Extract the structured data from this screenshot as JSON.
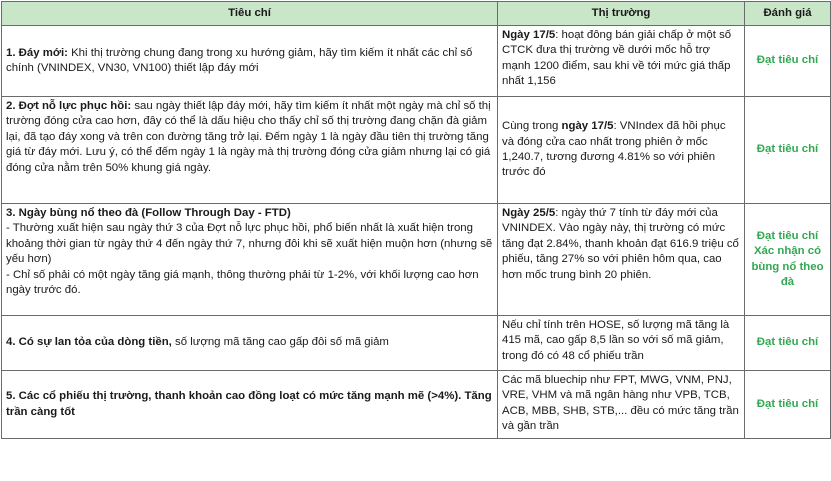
{
  "headers": [
    "Tiêu chí",
    "Thị trường",
    "Đánh giá"
  ],
  "rows": [
    {
      "criteria_title": "1. Đáy mới:",
      "criteria_text": " Khi thị trường chung đang trong xu hướng giảm, hãy tìm kiếm ít nhất các chỉ số chính (VNINDEX, VN30, VN100) thiết lập đáy mới",
      "market_lead": "Ngày 17/5",
      "market_text": ": hoạt đông bán giải chấp ở một số CTCK đưa thị trường về dưới mốc hỗ trợ mạnh 1200 điểm, sau khi về tới mức giá thấp nhất 1,156",
      "market_trail": "",
      "rating": "Đạt tiêu chí"
    },
    {
      "criteria_title": "2. Đợt nỗ lực phục hồi:",
      "criteria_text": " sau ngày thiết lập đáy mới, hãy tìm kiếm ít nhất một ngày mà chỉ số thị trường đóng cửa cao hơn, đây có thể là dấu hiệu cho thấy chỉ số thị trường đang chặn đà giảm lại, đã tạo đáy xong và trên con đường tăng trở lại. Đếm ngày 1 là ngày đầu tiên thị trường tăng giá từ đáy mới. Lưu ý, có thể đếm ngày 1 là ngày mà thị trường đóng cửa giảm nhưng lại có giá đóng cửa nằm trên 50% khung giá ngày.",
      "market_lead": "Cùng trong ",
      "market_bold": "ngày 17/5",
      "market_text": ": VNIndex đã hồi phục và đóng cửa cao nhất trong phiên ở mốc 1,240.7, tương đương 4.81% so với phiên trước đó",
      "rating": "Đạt tiêu chí"
    },
    {
      "criteria_title": "3. Ngày bùng nổ theo đà (Follow Through Day - FTD)",
      "criteria_text": "- Thường xuất hiện sau ngày thứ 3 của Đợt nỗ lực phục hồi, phổ biến nhất là xuất hiện trong khoảng thời gian từ ngày thứ 4 đến ngày thứ 7, nhưng đôi khi sẽ xuất hiện muộn hơn (nhưng sẽ yếu hơn)\n- Chỉ số phải  có một ngày tăng giá mạnh, thông thường phải từ 1-2%, với khối lượng cao hơn ngày trước đó.",
      "market_lead": "Ngày 25/5",
      "market_text": ": ngày thứ 7 tính từ đáy mới của VNINDEX. Vào ngày này, thị trường có mức tăng đạt 2.84%, thanh khoản đạt 616.9 triệu cổ phiếu, tăng 27% so với phiên hôm qua, cao hơn mốc trung bình 20 phiên.",
      "rating": "Đạt tiêu chí Xác nhận có bùng nổ theo đà"
    },
    {
      "criteria_title": "4. Có sự lan tỏa của dòng tiền,",
      "criteria_text": " số lượng mã tăng cao gấp đôi số mã giảm",
      "market_text": "Nếu chỉ tính trên HOSE, số lượng mã tăng là 415 mã, cao gấp 8,5 lần so với số mã giảm, trong đó có 48 cổ phiếu trần",
      "rating": "Đạt tiêu chí"
    },
    {
      "criteria_title": "5. Các cổ phiếu thị trường, thanh khoản cao đồng loạt có mức tăng mạnh mẽ (>4%). Tăng trần càng tốt",
      "criteria_text": "",
      "market_text": "Các mã bluechip như FPT, MWG, VNM, PNJ, VRE, VHM và mã ngân hàng như VPB, TCB, ACB, MBB, SHB, STB,... đều có mức tăng trần và gần trần",
      "rating": "Đạt tiêu chí"
    }
  ]
}
